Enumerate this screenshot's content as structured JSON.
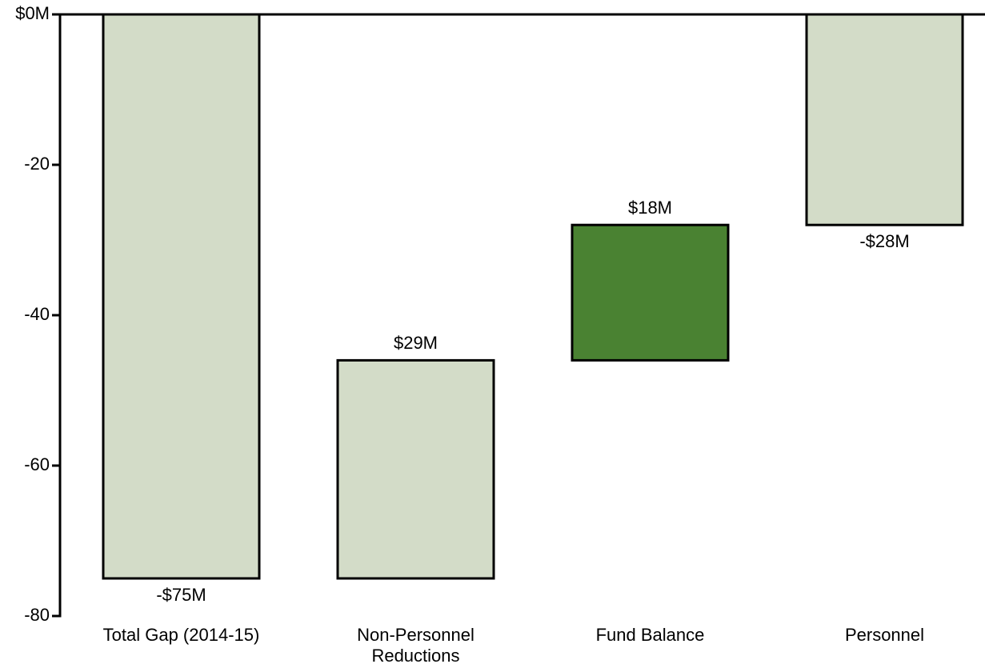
{
  "chart_data": {
    "type": "waterfall",
    "categories": [
      "Total Gap (2014-15)",
      "Non-Personnel Reductions",
      "Fund Balance",
      "Personnel"
    ],
    "values": [
      -75,
      29,
      18,
      -28
    ],
    "value_labels": [
      "-$75M",
      "$29M",
      "$18M",
      "-$28M"
    ],
    "measure": [
      "absolute",
      "relative",
      "relative",
      "absolute"
    ],
    "colors": [
      "#d3dcc8",
      "#d3dcc8",
      "#4a8232",
      "#d3dcc8"
    ],
    "ylim": [
      -80,
      0
    ],
    "yticks": [
      {
        "value": 0,
        "label": "$0M"
      },
      -20,
      -40,
      -60,
      -80
    ],
    "grid": false
  }
}
